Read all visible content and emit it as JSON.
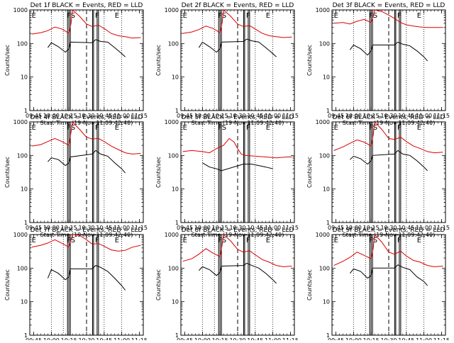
{
  "panel_labels": {
    "xlabel": "Start Time (19-Nov-11 09:42:40)",
    "ylabel": "Counts/sec"
  },
  "chart_data": [
    {
      "type": "line",
      "title": "Det 1f BLACK = Events, RED = LLD",
      "xlabel": "Start Time (19-Nov-11 09:42:40)",
      "ylabel": "Counts/sec",
      "yscale": "log",
      "ylim": [
        1,
        1000
      ],
      "xticklabels": [
        "09:45",
        "10:00",
        "10:15",
        "10:30",
        "10:45",
        "11:00",
        "11:15"
      ],
      "yticklabels": [
        "1",
        "10",
        "100",
        "1000"
      ],
      "region_labels": [
        "E",
        "FS",
        "F",
        "E"
      ],
      "series": [
        {
          "name": "Events",
          "color": "#000000",
          "x": [
            9.95,
            10.0,
            10.1,
            10.2,
            10.25,
            10.27,
            10.58,
            10.63,
            10.7,
            10.8,
            10.9,
            11.0,
            11.05
          ],
          "y": [
            75,
            105,
            80,
            55,
            70,
            110,
            105,
            130,
            115,
            110,
            75,
            50,
            40
          ]
        },
        {
          "name": "LLD",
          "color": "#dd0000",
          "x": [
            9.72,
            9.85,
            9.95,
            10.05,
            10.15,
            10.25,
            10.28,
            10.3,
            10.4,
            10.5,
            10.58,
            10.67,
            10.75,
            10.85,
            10.95,
            11.05,
            11.15,
            11.27
          ],
          "y": [
            190,
            210,
            240,
            310,
            270,
            200,
            400,
            1000,
            650,
            380,
            320,
            350,
            280,
            200,
            170,
            160,
            145,
            150
          ]
        }
      ]
    },
    {
      "type": "line",
      "title": "Det 2f BLACK = Events, RED = LLD",
      "xlabel": "Start Time (19-Nov-11 09:42:40)",
      "ylabel": "Counts/sec",
      "yscale": "log",
      "ylim": [
        1,
        1000
      ],
      "xticklabels": [
        "09:45",
        "10:00",
        "10:15",
        "10:30",
        "10:45",
        "11:00",
        "11:15"
      ],
      "yticklabels": [
        "1",
        "10",
        "100",
        "1000"
      ],
      "region_labels": [
        "E",
        "FS",
        "F",
        "E"
      ],
      "series": [
        {
          "name": "Events",
          "color": "#000000",
          "x": [
            9.95,
            10.0,
            10.1,
            10.2,
            10.25,
            10.27,
            10.58,
            10.63,
            10.7,
            10.8,
            10.9,
            11.0,
            11.05
          ],
          "y": [
            75,
            110,
            80,
            55,
            70,
            110,
            115,
            135,
            120,
            110,
            75,
            50,
            40
          ]
        },
        {
          "name": "LLD",
          "color": "#dd0000",
          "x": [
            9.72,
            9.85,
            9.95,
            10.05,
            10.15,
            10.25,
            10.28,
            10.3,
            10.4,
            10.5,
            10.58,
            10.67,
            10.75,
            10.85,
            10.95,
            11.05,
            11.15,
            11.27
          ],
          "y": [
            200,
            220,
            260,
            330,
            280,
            210,
            420,
            1000,
            650,
            380,
            320,
            340,
            270,
            200,
            170,
            160,
            150,
            155
          ]
        }
      ]
    },
    {
      "type": "line",
      "title": "Det 3f BLACK = Events, RED = LLD",
      "xlabel": "Start Time (19-Nov-11 09:42:40)",
      "ylabel": "Counts/sec",
      "yscale": "log",
      "ylim": [
        1,
        1000
      ],
      "xticklabels": [
        "09:45",
        "10:00",
        "10:15",
        "10:30",
        "10:45",
        "11:00",
        "11:15"
      ],
      "yticklabels": [
        "1",
        "10",
        "100",
        "1000"
      ],
      "region_labels": [
        "E",
        "FS",
        "F",
        "E"
      ],
      "series": [
        {
          "name": "Events",
          "color": "#000000",
          "x": [
            9.95,
            10.0,
            10.1,
            10.2,
            10.25,
            10.27,
            10.58,
            10.63,
            10.7,
            10.8,
            10.9,
            11.0,
            11.05
          ],
          "y": [
            65,
            90,
            70,
            45,
            60,
            90,
            90,
            110,
            95,
            85,
            60,
            40,
            30
          ]
        },
        {
          "name": "LLD",
          "color": "#dd0000",
          "x": [
            9.72,
            9.85,
            9.95,
            10.05,
            10.15,
            10.25,
            10.28,
            10.3,
            10.4,
            10.5,
            10.58,
            10.67,
            10.75,
            10.85,
            10.95,
            11.05,
            11.15,
            11.27
          ],
          "y": [
            400,
            420,
            380,
            460,
            520,
            420,
            650,
            1000,
            900,
            700,
            560,
            420,
            360,
            330,
            310,
            300,
            300,
            300
          ]
        }
      ]
    },
    {
      "type": "line",
      "title": "Det 4f BLACK = Events, RED = LLD",
      "xlabel": "Start Time (19-Nov-11 09:42:40)",
      "ylabel": "Counts/sec",
      "yscale": "log",
      "ylim": [
        1,
        1000
      ],
      "xticklabels": [
        "09:45",
        "10:00",
        "10:15",
        "10:30",
        "10:45",
        "11:00",
        "11:15"
      ],
      "yticklabels": [
        "1",
        "10",
        "100",
        "1000"
      ],
      "region_labels": [
        "E",
        "FS",
        "F",
        "E"
      ],
      "series": [
        {
          "name": "Events",
          "color": "#000000",
          "x": [
            9.95,
            10.0,
            10.1,
            10.2,
            10.25,
            10.27,
            10.58,
            10.63,
            10.7,
            10.8,
            10.9,
            11.0,
            11.05
          ],
          "y": [
            65,
            85,
            75,
            50,
            60,
            90,
            110,
            140,
            110,
            95,
            60,
            40,
            30
          ]
        },
        {
          "name": "LLD",
          "color": "#dd0000",
          "x": [
            9.72,
            9.85,
            9.95,
            10.05,
            10.15,
            10.25,
            10.28,
            10.3,
            10.4,
            10.5,
            10.58,
            10.67,
            10.75,
            10.85,
            10.95,
            11.05,
            11.15,
            11.27
          ],
          "y": [
            190,
            210,
            260,
            320,
            260,
            200,
            500,
            1000,
            600,
            350,
            310,
            320,
            260,
            190,
            150,
            120,
            110,
            115
          ]
        }
      ]
    },
    {
      "type": "line",
      "title": "Det 5f BLACK = Events, RED = LLD",
      "xlabel": "Start Time (19-Nov-11 09:42:40)",
      "ylabel": "Counts/sec",
      "yscale": "log",
      "ylim": [
        1,
        1000
      ],
      "xticklabels": [
        "09:45",
        "10:00",
        "10:15",
        "10:30",
        "10:45",
        "11:00",
        "11:15"
      ],
      "yticklabels": [
        "1",
        "10",
        "100",
        "1000"
      ],
      "region_labels": [
        "E",
        "FS",
        "F",
        "E"
      ],
      "series": [
        {
          "name": "Events",
          "color": "#000000",
          "x": [
            10.0,
            10.1,
            10.2,
            10.27,
            10.58,
            10.7,
            10.8,
            10.9,
            11.0
          ],
          "y": [
            60,
            45,
            40,
            35,
            55,
            55,
            50,
            45,
            40
          ]
        },
        {
          "name": "LLD",
          "color": "#dd0000",
          "x": [
            9.72,
            9.85,
            10.0,
            10.1,
            10.2,
            10.3,
            10.38,
            10.45,
            10.5,
            10.55,
            10.6,
            10.75,
            10.9,
            11.05,
            11.2,
            11.27
          ],
          "y": [
            130,
            140,
            130,
            120,
            160,
            200,
            320,
            250,
            160,
            110,
            100,
            95,
            90,
            85,
            90,
            90
          ]
        }
      ]
    },
    {
      "type": "line",
      "title": "Det 6f BLACK = Events, RED = LLD",
      "xlabel": "Start Time (19-Nov-11 09:42:40)",
      "ylabel": "Counts/sec",
      "yscale": "log",
      "ylim": [
        1,
        1000
      ],
      "xticklabels": [
        "09:45",
        "10:00",
        "10:15",
        "10:30",
        "10:45",
        "11:00",
        "11:15"
      ],
      "yticklabels": [
        "1",
        "10",
        "100",
        "1000"
      ],
      "region_labels": [
        "E",
        "FS",
        "F",
        "E"
      ],
      "series": [
        {
          "name": "Events",
          "color": "#000000",
          "x": [
            9.95,
            10.0,
            10.1,
            10.2,
            10.25,
            10.27,
            10.58,
            10.63,
            10.7,
            10.8,
            10.9,
            11.0,
            11.05
          ],
          "y": [
            75,
            95,
            80,
            55,
            70,
            100,
            110,
            140,
            110,
            100,
            70,
            45,
            35
          ]
        },
        {
          "name": "LLD",
          "color": "#dd0000",
          "x": [
            9.72,
            9.85,
            9.95,
            10.05,
            10.15,
            10.25,
            10.28,
            10.3,
            10.4,
            10.5,
            10.58,
            10.67,
            10.75,
            10.85,
            10.95,
            11.05,
            11.15,
            11.27
          ],
          "y": [
            140,
            180,
            230,
            290,
            250,
            190,
            420,
            1000,
            600,
            320,
            300,
            350,
            260,
            190,
            160,
            130,
            120,
            125
          ]
        }
      ]
    },
    {
      "type": "line",
      "title": "Det 7f BLACK = Events, RED = LLD",
      "xlabel": "Start Time (19-Nov-11 09:42:40)",
      "ylabel": "Counts/sec",
      "yscale": "log",
      "ylim": [
        1,
        1000
      ],
      "xticklabels": [
        "09:45",
        "10:00",
        "10:15",
        "10:30",
        "10:45",
        "11:00",
        "11:15"
      ],
      "yticklabels": [
        "1",
        "10",
        "100",
        "1000"
      ],
      "region_labels": [
        "E",
        "FS",
        "F",
        "E"
      ],
      "series": [
        {
          "name": "Events",
          "color": "#000000",
          "x": [
            9.95,
            10.0,
            10.1,
            10.2,
            10.25,
            10.27,
            10.58,
            10.63,
            10.7,
            10.8,
            10.9,
            11.0,
            11.05
          ],
          "y": [
            50,
            90,
            70,
            45,
            55,
            95,
            95,
            120,
            105,
            80,
            50,
            30,
            22
          ]
        },
        {
          "name": "LLD",
          "color": "#dd0000",
          "x": [
            9.72,
            9.85,
            9.95,
            10.05,
            10.15,
            10.25,
            10.28,
            10.3,
            10.4,
            10.5,
            10.58,
            10.67,
            10.75,
            10.85,
            10.95,
            11.05,
            11.15,
            11.27
          ],
          "y": [
            420,
            480,
            560,
            700,
            550,
            420,
            700,
            1000,
            950,
            700,
            520,
            540,
            450,
            350,
            320,
            340,
            420,
            480
          ]
        }
      ]
    },
    {
      "type": "line",
      "title": "Det 8f BLACK = Events, RED = LLD",
      "xlabel": "Start Time (19-Nov-11 09:42:40)",
      "ylabel": "Counts/sec",
      "yscale": "log",
      "ylim": [
        1,
        1000
      ],
      "xticklabels": [
        "09:45",
        "10:00",
        "10:15",
        "10:30",
        "10:45",
        "11:00",
        "11:15"
      ],
      "yticklabels": [
        "1",
        "10",
        "100",
        "1000"
      ],
      "region_labels": [
        "E",
        "FS",
        "F",
        "E"
      ],
      "series": [
        {
          "name": "Events",
          "color": "#000000",
          "x": [
            9.95,
            10.0,
            10.1,
            10.2,
            10.25,
            10.27,
            10.58,
            10.63,
            10.7,
            10.8,
            10.9,
            11.0,
            11.05
          ],
          "y": [
            85,
            110,
            90,
            60,
            75,
            115,
            120,
            140,
            120,
            100,
            70,
            45,
            35
          ]
        },
        {
          "name": "LLD",
          "color": "#dd0000",
          "x": [
            9.72,
            9.85,
            9.95,
            10.05,
            10.15,
            10.25,
            10.28,
            10.3,
            10.4,
            10.5,
            10.58,
            10.67,
            10.75,
            10.85,
            10.95,
            11.05,
            11.15,
            11.27
          ],
          "y": [
            160,
            190,
            260,
            380,
            280,
            220,
            500,
            1000,
            650,
            360,
            300,
            330,
            250,
            180,
            150,
            120,
            110,
            115
          ]
        }
      ]
    },
    {
      "type": "line",
      "title": "Det 9f BLACK = Events, RED = LLD",
      "xlabel": "Start Time (19-Nov-11 09:42:40)",
      "ylabel": "Counts/sec",
      "yscale": "log",
      "ylim": [
        1,
        1000
      ],
      "xticklabels": [
        "09:45",
        "10:00",
        "10:15",
        "10:30",
        "10:45",
        "11:00",
        "11:15"
      ],
      "yticklabels": [
        "1",
        "10",
        "100",
        "1000"
      ],
      "region_labels": [
        "E",
        "FS",
        "F",
        "E"
      ],
      "series": [
        {
          "name": "Events",
          "color": "#000000",
          "x": [
            9.95,
            10.0,
            10.1,
            10.2,
            10.25,
            10.27,
            10.58,
            10.63,
            10.7,
            10.8,
            10.9,
            11.0,
            11.05
          ],
          "y": [
            70,
            95,
            80,
            50,
            60,
            100,
            100,
            125,
            105,
            90,
            55,
            40,
            30
          ]
        },
        {
          "name": "LLD",
          "color": "#dd0000",
          "x": [
            9.72,
            9.85,
            9.95,
            10.05,
            10.15,
            10.25,
            10.28,
            10.3,
            10.4,
            10.5,
            10.58,
            10.67,
            10.75,
            10.85,
            10.95,
            11.05,
            11.15,
            11.27
          ],
          "y": [
            120,
            160,
            210,
            300,
            240,
            190,
            400,
            1000,
            600,
            300,
            260,
            320,
            230,
            170,
            150,
            120,
            110,
            115
          ]
        }
      ]
    }
  ]
}
